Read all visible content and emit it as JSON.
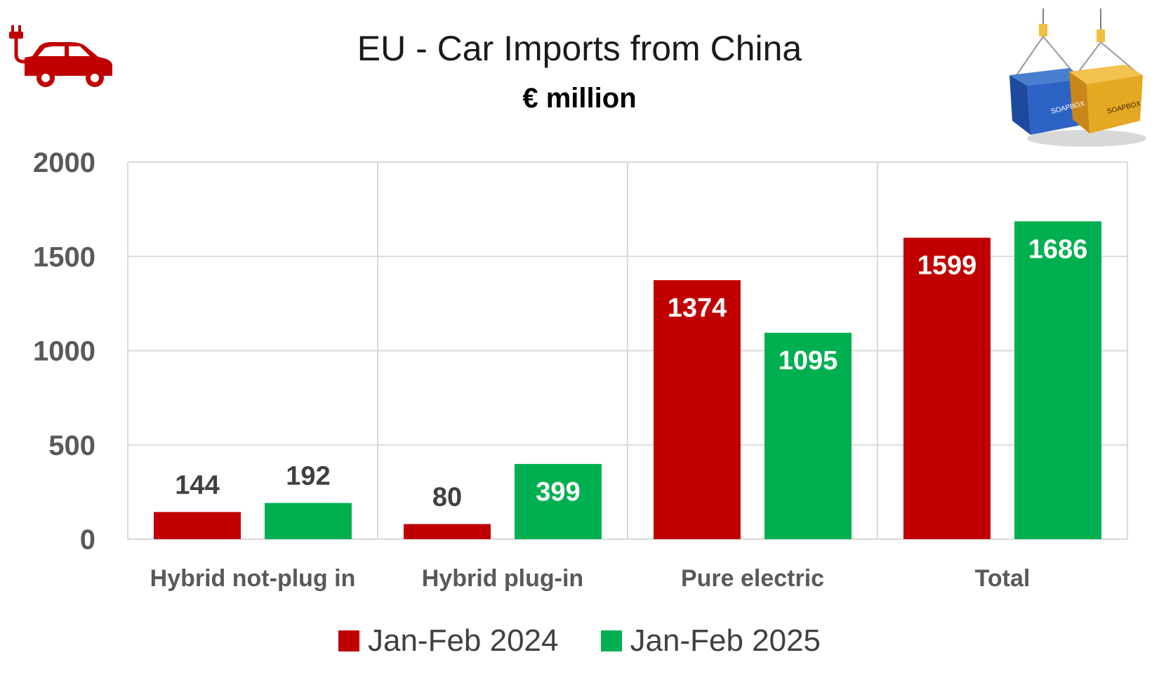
{
  "chart_data": {
    "type": "bar",
    "title": "EU - Car Imports from China",
    "subtitle": "€ million",
    "categories": [
      "Hybrid not-plug in",
      "Hybrid plug-in",
      "Pure electric",
      "Total"
    ],
    "series": [
      {
        "name": "Jan-Feb 2024",
        "values": [
          144,
          80,
          1374,
          1599
        ],
        "color": "#c00000"
      },
      {
        "name": "Jan-Feb 2025",
        "values": [
          192,
          399,
          1095,
          1686
        ],
        "color": "#00b050"
      }
    ],
    "ylim": [
      0,
      2000
    ],
    "yticks": [
      "0",
      "500",
      "1000",
      "1500",
      "2000"
    ],
    "grid": true,
    "legend": "bottom-center"
  },
  "icons": {
    "left": "electric-car-icon",
    "right": "shipping-containers-icon",
    "container_text": "SOAPBOX"
  },
  "colors": {
    "grid": "#d9d9d9",
    "axis_text": "#595959",
    "label_dark": "#404040"
  }
}
